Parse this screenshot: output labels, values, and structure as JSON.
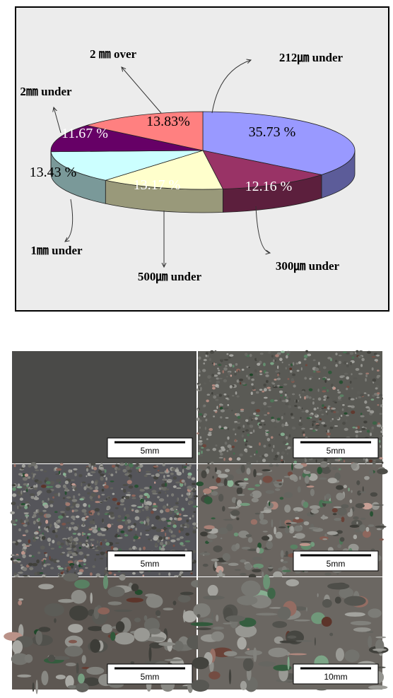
{
  "chart_data": {
    "type": "pie",
    "categories": [
      "212㎛ under",
      "300㎛ under",
      "500㎛ under",
      "1㎜ under",
      "2㎜ under",
      "2 ㎜ over"
    ],
    "values": [
      35.73,
      12.16,
      13.17,
      13.43,
      11.67,
      13.83
    ],
    "value_labels": [
      "35.73 %",
      "12.16 %",
      "13.17 %",
      "13.43 %",
      "11.67 %",
      "13.83%"
    ],
    "colors": [
      "#9999ff",
      "#993366",
      "#ffffcc",
      "#ccffff",
      "#660066",
      "#ff8080"
    ]
  },
  "photos": [
    {
      "scale": "5mm"
    },
    {
      "scale": "5mm"
    },
    {
      "scale": "5mm"
    },
    {
      "scale": "5mm"
    },
    {
      "scale": "5mm"
    },
    {
      "scale": "10mm"
    }
  ]
}
